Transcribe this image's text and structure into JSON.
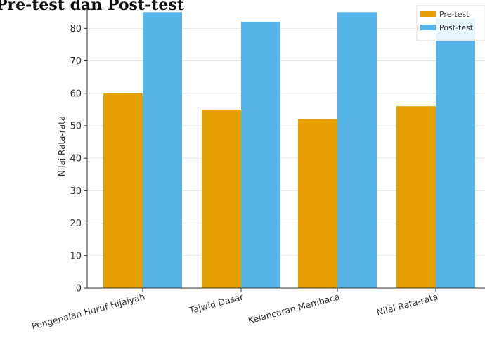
{
  "chart_data": {
    "type": "bar",
    "title": "Pre-test dan Post-test",
    "xlabel": "",
    "ylabel": "Nilai Rata-rata",
    "categories": [
      "Pengenalan Huruf Hijaiyah",
      "Tajwid Dasar",
      "Kelancaran Membaca",
      "Nilai Rata-rata"
    ],
    "series": [
      {
        "name": "Pre-test",
        "values": [
          60,
          55,
          52,
          56
        ],
        "color": "#E69F00"
      },
      {
        "name": "Post-test",
        "values": [
          85,
          82,
          85,
          83
        ],
        "color": "#56B4E9"
      }
    ],
    "y_ticks": [
      "0",
      "10",
      "20",
      "30",
      "40",
      "50",
      "60",
      "70",
      "80"
    ],
    "ylim": [
      0,
      87
    ],
    "grid": true,
    "legend_position": "top-right"
  }
}
